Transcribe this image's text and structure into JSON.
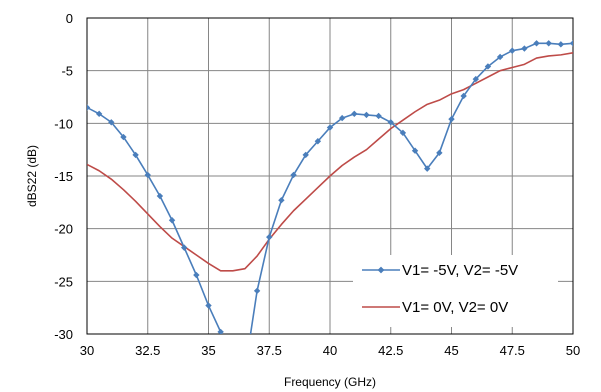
{
  "chart_data": {
    "type": "line",
    "title": "",
    "xlabel": "Frequency (GHz)",
    "ylabel": "dBS22 (dB)",
    "xlim": [
      30,
      50
    ],
    "ylim": [
      -30,
      0
    ],
    "x_ticks": [
      30,
      32.5,
      35,
      37.5,
      40,
      42.5,
      45,
      47.5,
      50
    ],
    "x_tick_labels": [
      "30",
      "32.5",
      "35",
      "37.5",
      "40",
      "42.5",
      "45",
      "47.5",
      "50"
    ],
    "y_ticks": [
      0,
      -5,
      -10,
      -15,
      -20,
      -25,
      -30
    ],
    "y_tick_labels": [
      "0",
      "-5",
      "-10",
      "-15",
      "-20",
      "-25",
      "-30"
    ],
    "grid": true,
    "legend_position": "lower-right",
    "series": [
      {
        "name": "V1= -5V, V2= -5V",
        "color": "#4a7ebb",
        "marker": "diamond",
        "x": [
          30,
          30.5,
          31,
          31.5,
          32,
          32.5,
          33,
          33.5,
          34,
          34.5,
          35,
          35.5,
          36,
          36.5,
          37,
          37.5,
          38,
          38.5,
          39,
          39.5,
          40,
          40.5,
          41,
          41.5,
          42,
          42.5,
          43,
          43.5,
          44,
          44.5,
          45,
          45.5,
          46,
          46.5,
          47,
          47.5,
          48,
          48.5,
          49,
          49.5,
          50
        ],
        "y": [
          -8.5,
          -9.1,
          -9.9,
          -11.3,
          -13.0,
          -14.9,
          -16.9,
          -19.2,
          -21.8,
          -24.4,
          -27.3,
          -29.8,
          -32.0,
          -33.5,
          -25.9,
          -20.8,
          -17.3,
          -14.9,
          -13.0,
          -11.7,
          -10.4,
          -9.5,
          -9.1,
          -9.2,
          -9.3,
          -9.9,
          -10.9,
          -12.6,
          -14.3,
          -12.8,
          -9.6,
          -7.4,
          -5.8,
          -4.6,
          -3.7,
          -3.1,
          -2.9,
          -2.4,
          -2.4,
          -2.5,
          -2.4
        ]
      },
      {
        "name": "V1= 0V, V2= 0V",
        "color": "#be4b48",
        "marker": "none",
        "x": [
          30,
          30.5,
          31,
          31.5,
          32,
          32.5,
          33,
          33.5,
          34,
          34.5,
          35,
          35.5,
          36,
          36.5,
          37,
          37.5,
          38,
          38.5,
          39,
          39.5,
          40,
          40.5,
          41,
          41.5,
          42,
          42.5,
          43,
          43.5,
          44,
          44.5,
          45,
          45.5,
          46,
          46.5,
          47,
          47.5,
          48,
          48.5,
          49,
          49.5,
          50
        ],
        "y": [
          -13.9,
          -14.5,
          -15.3,
          -16.3,
          -17.4,
          -18.6,
          -19.8,
          -20.9,
          -21.7,
          -22.5,
          -23.3,
          -24.0,
          -24.0,
          -23.8,
          -22.6,
          -21.0,
          -19.6,
          -18.3,
          -17.2,
          -16.1,
          -15.0,
          -14.0,
          -13.2,
          -12.5,
          -11.5,
          -10.5,
          -9.7,
          -8.9,
          -8.2,
          -7.8,
          -7.2,
          -6.8,
          -6.2,
          -5.6,
          -5.0,
          -4.7,
          -4.4,
          -3.8,
          -3.6,
          -3.5,
          -3.3
        ]
      }
    ]
  }
}
